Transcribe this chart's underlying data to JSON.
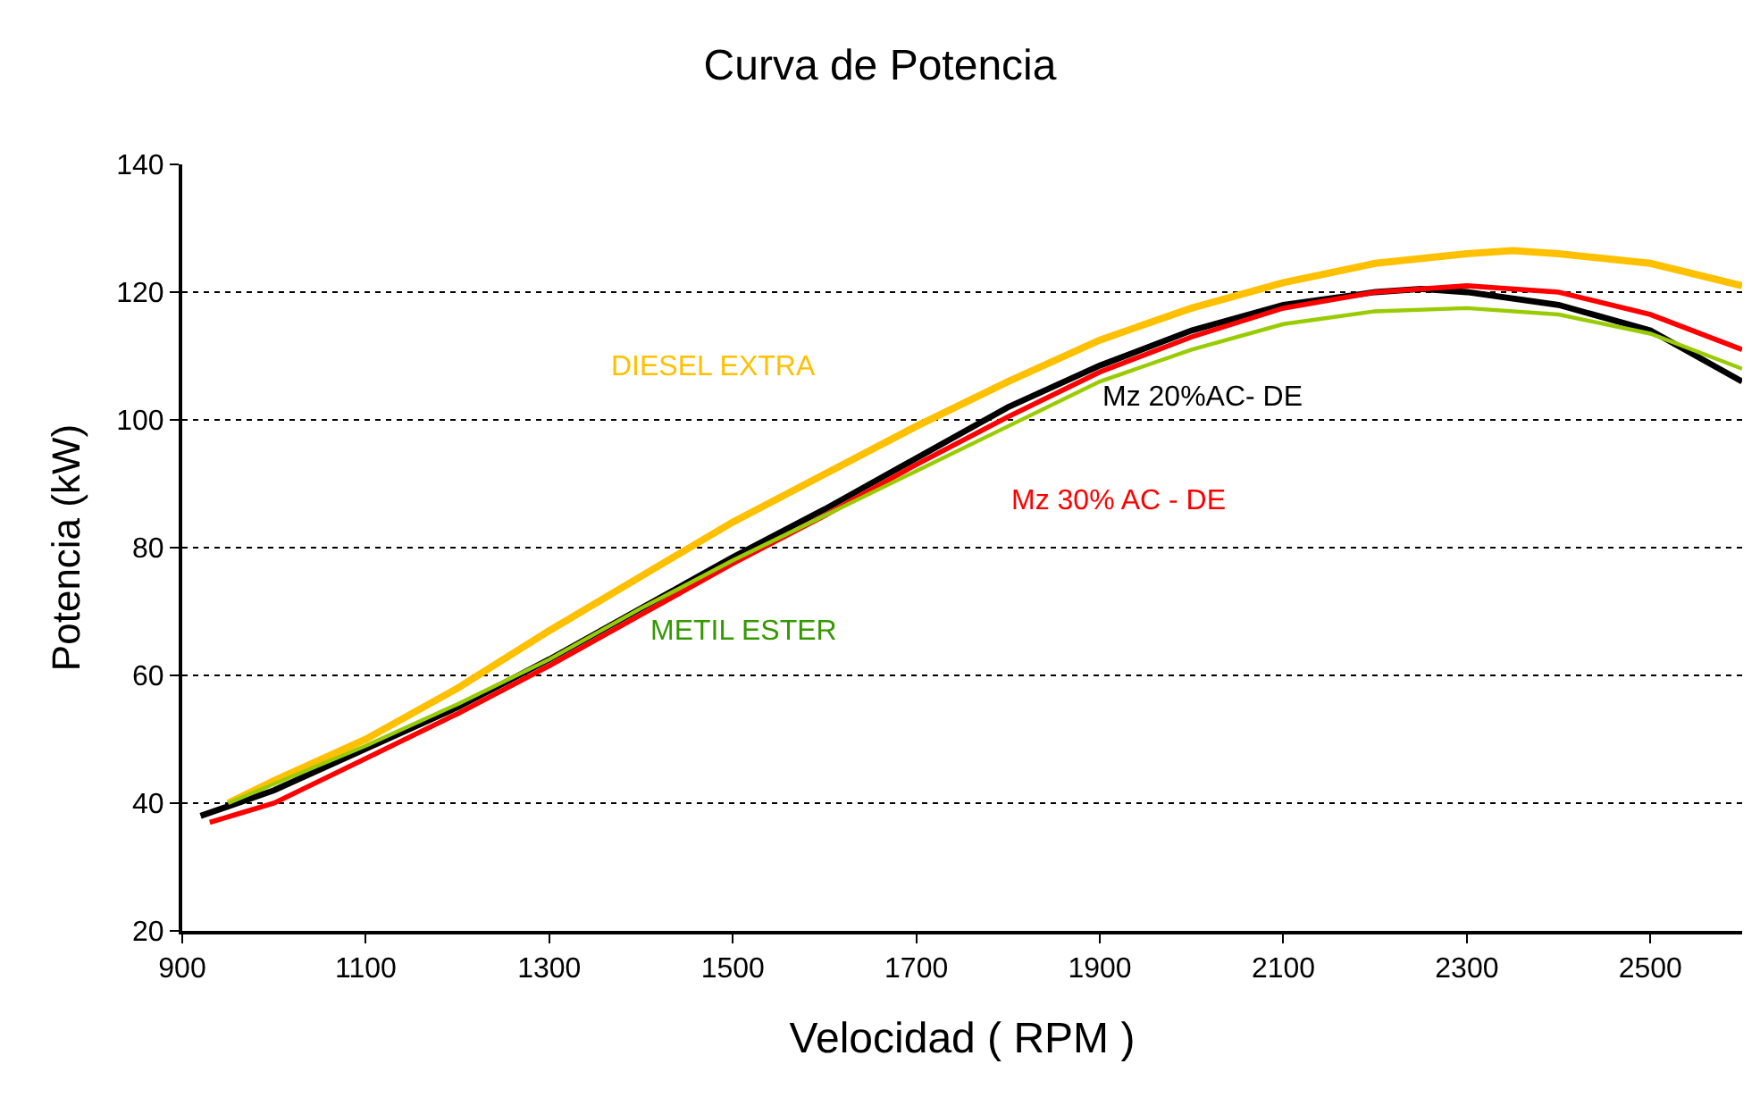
{
  "chart_data": {
    "type": "line",
    "title": "Curva de Potencia",
    "xlabel": "Velocidad ( RPM )",
    "ylabel": "Potencia (kW)",
    "xlim": [
      900,
      2600
    ],
    "xticks": [
      900,
      1100,
      1300,
      1500,
      1700,
      1900,
      2100,
      2300,
      2500
    ],
    "ylim": [
      20,
      140
    ],
    "yticks": [
      20,
      40,
      60,
      80,
      100,
      120,
      140
    ],
    "grid": "y",
    "legend": false,
    "marker": "none",
    "line_style": "solid",
    "series": [
      {
        "name": "DIESEL EXTRA",
        "color": "#ffc000",
        "x": [
          950,
          1000,
          1100,
          1200,
          1300,
          1400,
          1500,
          1600,
          1700,
          1800,
          1900,
          2000,
          2100,
          2200,
          2300,
          2350,
          2400,
          2500,
          2600
        ],
        "values": [
          40,
          43.5,
          50,
          58,
          67,
          75.5,
          84,
          91.5,
          99,
          106,
          112.5,
          117.5,
          121.5,
          124.5,
          126,
          126.5,
          126,
          124.5,
          121
        ]
      },
      {
        "name": "Mz 20%AC- DE",
        "color": "#000000",
        "x": [
          920,
          1000,
          1100,
          1200,
          1300,
          1400,
          1500,
          1600,
          1700,
          1800,
          1900,
          2000,
          2100,
          2200,
          2250,
          2300,
          2400,
          2500,
          2600
        ],
        "values": [
          38,
          42,
          48.5,
          55,
          62.5,
          70.5,
          78.5,
          86,
          94,
          102,
          108.5,
          114,
          118,
          120,
          120.5,
          120,
          118,
          114,
          106
        ]
      },
      {
        "name": "Mz 30% AC - DE",
        "color": "#ff0000",
        "x": [
          930,
          1000,
          1100,
          1200,
          1300,
          1400,
          1500,
          1600,
          1700,
          1800,
          1900,
          2000,
          2100,
          2200,
          2300,
          2400,
          2500,
          2600
        ],
        "values": [
          37,
          40,
          47,
          54,
          61.5,
          69.5,
          77.5,
          85,
          93,
          100.5,
          107.5,
          113,
          117.5,
          120,
          121,
          120,
          116.5,
          111
        ]
      },
      {
        "name": "METIL ESTER",
        "color": "#99cc00",
        "x": [
          950,
          1000,
          1100,
          1200,
          1300,
          1400,
          1500,
          1600,
          1700,
          1800,
          1900,
          2000,
          2100,
          2200,
          2300,
          2400,
          2500,
          2600
        ],
        "values": [
          40,
          43,
          49,
          55.5,
          62.5,
          70.5,
          78,
          85,
          92,
          99,
          106,
          111,
          115,
          117,
          117.5,
          116.5,
          113.5,
          108
        ]
      }
    ]
  }
}
